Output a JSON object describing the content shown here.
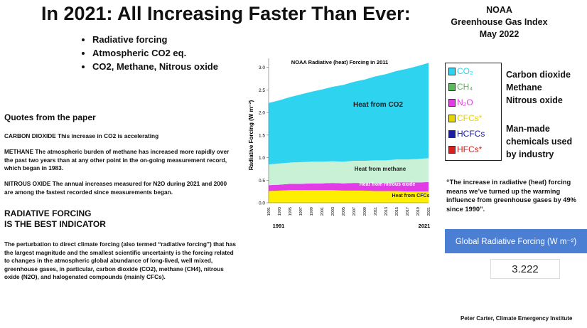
{
  "header": {
    "title": "In 2021: All Increasing Faster Than Ever:",
    "source_box": [
      "NOAA",
      "Greenhouse Gas Index",
      "May 2022"
    ]
  },
  "bullets": [
    "Radiative forcing",
    "Atmospheric CO2 eq.",
    "CO2, Methane, Nitrous oxide"
  ],
  "quotes": {
    "heading": "Quotes from the paper",
    "paragraphs": [
      "CARBON DIOXIDE  This increase in CO2 is accelerating",
      "METHANE The atmospheric burden of methane has increased more rapidly over the past two years than at any other point in the on-going measurement record, which began in 1983.",
      "NITROUS OXIDE The annual increases measured for N2O during 2021 and 2000 are among the fastest recorded since measurements began."
    ]
  },
  "indicator": {
    "heading": [
      "RADIATIVE FORCING",
      "IS THE BEST INDICATOR"
    ],
    "text": "The perturbation to direct climate forcing (also termed “radiative forcing”) that has the largest magnitude and the smallest scientific uncertainty is the forcing related to changes in the atmospheric global abundance of long-lived, well mixed, greenhouse gases, in particular, carbon dioxide (CO2), methane (CH4), nitrous oxide (N2O), and halogenated compounds (mainly CFCs)."
  },
  "chart_data": {
    "type": "stacked_area",
    "title": "NOAA Radiative (heat) Forcing in 2011",
    "y_label": "Radiative Forcing (W m⁻²)",
    "categories": [
      1991,
      1993,
      1995,
      1997,
      1999,
      2001,
      2003,
      2005,
      2007,
      2009,
      2011,
      2013,
      2015,
      2017,
      2019,
      2021
    ],
    "series": [
      {
        "name": "Heat from CFCs",
        "color": "#ffee00",
        "values": [
          0.26,
          0.27,
          0.28,
          0.28,
          0.28,
          0.28,
          0.28,
          0.27,
          0.27,
          0.27,
          0.26,
          0.26,
          0.26,
          0.25,
          0.25,
          0.25
        ]
      },
      {
        "name": "Heat from nitrous oxide",
        "color": "#e23ce6",
        "values": [
          0.13,
          0.13,
          0.14,
          0.14,
          0.15,
          0.15,
          0.16,
          0.16,
          0.17,
          0.17,
          0.18,
          0.18,
          0.19,
          0.2,
          0.2,
          0.21
        ]
      },
      {
        "name": "Heat from methane",
        "color": "#c8f1d6",
        "values": [
          0.46,
          0.47,
          0.47,
          0.48,
          0.48,
          0.48,
          0.48,
          0.48,
          0.49,
          0.49,
          0.5,
          0.5,
          0.51,
          0.51,
          0.52,
          0.53
        ]
      },
      {
        "name": "Heat from CO2",
        "color": "#2ed3f0",
        "values": [
          1.36,
          1.4,
          1.45,
          1.5,
          1.55,
          1.6,
          1.65,
          1.7,
          1.75,
          1.8,
          1.86,
          1.91,
          1.96,
          2.01,
          2.06,
          2.11
        ]
      }
    ],
    "ylim": [
      0,
      3.2
    ],
    "yticks": [
      {
        "value": 0,
        "label": "0.0"
      },
      {
        "value": 0.5,
        "label": "0.5"
      },
      {
        "value": 1,
        "label": "1.0"
      },
      {
        "value": 1.5,
        "label": "1.5"
      },
      {
        "value": 2,
        "label": "2.0"
      },
      {
        "value": 2.5,
        "label": "2.5"
      },
      {
        "value": 3,
        "label": "3.0"
      }
    ]
  },
  "gas_legend": [
    {
      "label": "CO₂",
      "color": "#2ed3f0"
    },
    {
      "label": "CH₄",
      "color": "#5cb85c"
    },
    {
      "label": "N₂O",
      "color": "#e23ce6"
    },
    {
      "label": "CFCs*",
      "color": "#e6d400"
    },
    {
      "label": "HCFCs",
      "color": "#1a1aa8"
    },
    {
      "label": "HFCs*",
      "color": "#d62020"
    }
  ],
  "gas_names": [
    "Carbon dioxide",
    "Methane",
    "Nitrous oxide"
  ],
  "manmade": [
    "Man-made",
    "chemicals used",
    "by industry"
  ],
  "quote_right": "“The increase in radiative (heat) forcing means we’ve turned up the warming influence from greenhouse gases by 49% since 1990”.",
  "index_panel": {
    "label": "Global Radiative Forcing (W m⁻²)",
    "value": "3.222"
  },
  "footer": "Peter Carter, Climate Emergency Institute"
}
